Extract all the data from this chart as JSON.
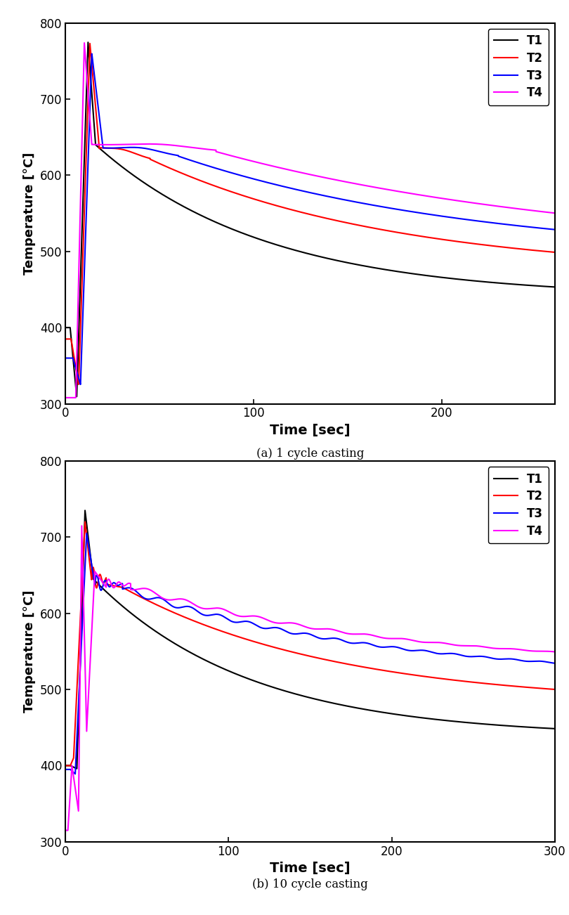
{
  "plot_a": {
    "title": "(a) 1 cycle casting",
    "xlabel": "Time [sec]",
    "ylabel": "Temperature [°C]",
    "xlim": [
      0,
      260
    ],
    "ylim": [
      300,
      800
    ],
    "yticks": [
      300,
      400,
      500,
      600,
      700,
      800
    ],
    "xticks": [
      0,
      100,
      200
    ],
    "legend": [
      "T1",
      "T2",
      "T3",
      "T4"
    ],
    "colors": [
      "#000000",
      "#ff0000",
      "#0000ff",
      "#ff00ff"
    ]
  },
  "plot_b": {
    "title": "(b) 10 cycle casting",
    "xlabel": "Time [sec]",
    "ylabel": "Temperature [°C]",
    "xlim": [
      0,
      300
    ],
    "ylim": [
      300,
      800
    ],
    "yticks": [
      300,
      400,
      500,
      600,
      700,
      800
    ],
    "xticks": [
      0,
      100,
      200,
      300
    ],
    "legend": [
      "T1",
      "T2",
      "T3",
      "T4"
    ],
    "colors": [
      "#000000",
      "#ff0000",
      "#0000ff",
      "#ff00ff"
    ]
  },
  "background_color": "#ffffff",
  "plot_bg": "#ffffff",
  "line_width": 1.5
}
